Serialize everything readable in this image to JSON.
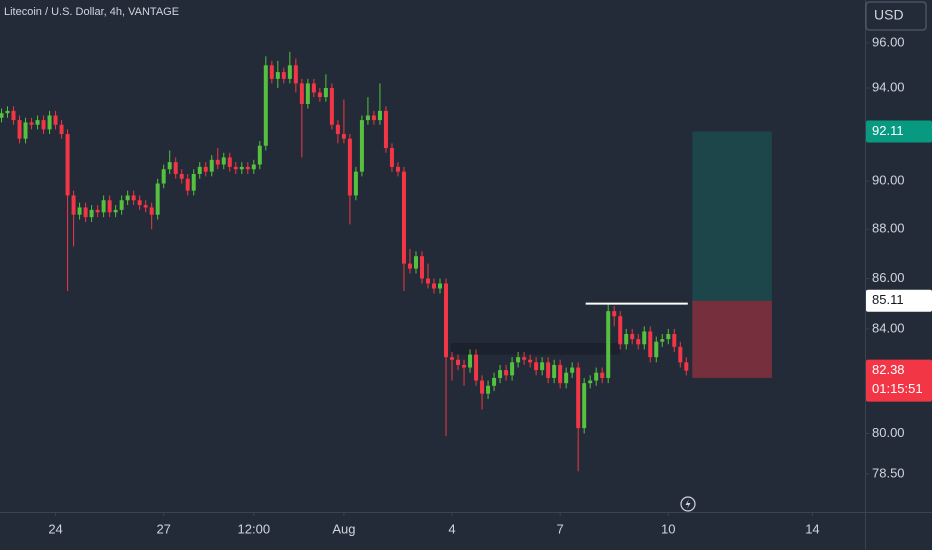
{
  "chart_data": {
    "type": "candlestick",
    "title": "Litecoin / U.S. Dollar, 4h, VANTAGE",
    "currency": "USD",
    "countdown": "01:15:51",
    "log": true,
    "background": "#232b38",
    "up_color": "#56c13f",
    "down_color": "#f23645",
    "ylim": [
      77.12,
      97.94
    ],
    "yticks": [
      {
        "value": 96,
        "label": "96.00"
      },
      {
        "value": 94,
        "label": "94.00"
      },
      {
        "value": 90,
        "label": "90.00"
      },
      {
        "value": 88,
        "label": "88.00"
      },
      {
        "value": 86,
        "label": "86.00"
      },
      {
        "value": 84,
        "label": "84.00"
      },
      {
        "value": 80,
        "label": "80.00"
      },
      {
        "value": 78.5,
        "label": "78.50"
      }
    ],
    "xlim": [
      -37,
      539
    ],
    "xticks": [
      {
        "value": 0,
        "label": "24"
      },
      {
        "value": 72,
        "label": "27"
      },
      {
        "value": 132,
        "label": "12:00"
      },
      {
        "value": 192,
        "label": "Aug"
      },
      {
        "value": 264,
        "label": "4"
      },
      {
        "value": 336,
        "label": "7"
      },
      {
        "value": 408,
        "label": "10"
      },
      {
        "value": 504,
        "label": "14"
      }
    ],
    "x": [
      -36,
      -32,
      -28,
      -24,
      -20,
      -16,
      -12,
      -8,
      -4,
      0,
      4,
      8,
      12,
      16,
      20,
      24,
      28,
      32,
      36,
      40,
      44,
      48,
      52,
      56,
      60,
      64,
      68,
      72,
      76,
      80,
      84,
      88,
      92,
      96,
      100,
      104,
      108,
      112,
      116,
      120,
      124,
      128,
      132,
      136,
      140,
      144,
      148,
      152,
      156,
      160,
      164,
      168,
      172,
      176,
      180,
      184,
      188,
      192,
      196,
      200,
      204,
      208,
      212,
      216,
      220,
      224,
      228,
      232,
      236,
      240,
      244,
      248,
      252,
      256,
      260,
      264,
      268,
      272,
      276,
      280,
      284,
      288,
      292,
      296,
      300,
      304,
      308,
      312,
      316,
      320,
      324,
      328,
      332,
      336,
      340,
      344,
      348,
      352,
      356,
      360,
      364,
      368,
      372,
      376,
      380,
      384,
      388,
      392,
      396,
      400,
      404,
      408,
      412,
      416,
      420
    ],
    "ohlc": [
      [
        92.7,
        93.1,
        92.5,
        92.9
      ],
      [
        92.9,
        93.2,
        92.7,
        93.0
      ],
      [
        93.0,
        93.2,
        92.4,
        92.6
      ],
      [
        92.6,
        92.8,
        91.6,
        91.8
      ],
      [
        91.8,
        92.7,
        91.6,
        92.5
      ],
      [
        92.5,
        92.7,
        92.2,
        92.4
      ],
      [
        92.4,
        92.8,
        92.2,
        92.6
      ],
      [
        92.6,
        92.8,
        92.0,
        92.2
      ],
      [
        92.2,
        93.0,
        92.0,
        92.8
      ],
      [
        92.8,
        93.0,
        92.2,
        92.4
      ],
      [
        92.4,
        92.6,
        91.8,
        92.0
      ],
      [
        92.0,
        92.2,
        85.5,
        89.4
      ],
      [
        89.4,
        89.6,
        87.3,
        88.6
      ],
      [
        88.6,
        89.1,
        88.4,
        88.9
      ],
      [
        88.9,
        89.1,
        88.3,
        88.5
      ],
      [
        88.5,
        89.0,
        88.3,
        88.8
      ],
      [
        88.8,
        89.0,
        88.5,
        88.7
      ],
      [
        88.7,
        89.4,
        88.5,
        89.2
      ],
      [
        89.2,
        89.4,
        88.5,
        88.7
      ],
      [
        88.7,
        89.0,
        88.5,
        88.8
      ],
      [
        88.8,
        89.4,
        88.6,
        89.2
      ],
      [
        89.2,
        89.6,
        89.0,
        89.4
      ],
      [
        89.4,
        89.6,
        89.0,
        89.2
      ],
      [
        89.2,
        89.4,
        88.8,
        89.0
      ],
      [
        89.0,
        89.2,
        88.7,
        88.9
      ],
      [
        88.9,
        89.1,
        88.0,
        88.6
      ],
      [
        88.6,
        90.1,
        88.4,
        89.9
      ],
      [
        89.9,
        90.7,
        89.7,
        90.5
      ],
      [
        90.5,
        91.3,
        90.3,
        90.8
      ],
      [
        90.8,
        91.0,
        90.1,
        90.3
      ],
      [
        90.3,
        90.5,
        89.9,
        90.1
      ],
      [
        90.1,
        90.3,
        89.4,
        89.6
      ],
      [
        89.6,
        90.5,
        89.4,
        90.3
      ],
      [
        90.3,
        90.8,
        90.1,
        90.6
      ],
      [
        90.6,
        90.8,
        90.2,
        90.4
      ],
      [
        90.4,
        91.1,
        90.2,
        90.9
      ],
      [
        90.9,
        91.4,
        90.5,
        90.7
      ],
      [
        90.7,
        91.2,
        90.5,
        91.0
      ],
      [
        91.0,
        91.2,
        90.4,
        90.6
      ],
      [
        90.6,
        90.8,
        90.3,
        90.5
      ],
      [
        90.5,
        90.8,
        90.3,
        90.6
      ],
      [
        90.6,
        90.8,
        90.3,
        90.5
      ],
      [
        90.5,
        90.9,
        90.3,
        90.7
      ],
      [
        90.7,
        91.7,
        90.5,
        91.5
      ],
      [
        91.5,
        95.4,
        91.3,
        95.0
      ],
      [
        95.0,
        95.2,
        94.2,
        94.4
      ],
      [
        94.4,
        95.2,
        94.0,
        94.7
      ],
      [
        94.7,
        94.9,
        94.2,
        94.4
      ],
      [
        94.4,
        95.6,
        94.2,
        95.0
      ],
      [
        95.0,
        95.3,
        93.8,
        94.2
      ],
      [
        94.2,
        94.4,
        91.0,
        93.3
      ],
      [
        93.3,
        94.4,
        93.1,
        94.2
      ],
      [
        94.2,
        94.4,
        93.6,
        93.8
      ],
      [
        93.8,
        94.0,
        93.4,
        93.6
      ],
      [
        93.6,
        94.6,
        93.4,
        94.0
      ],
      [
        94.0,
        94.2,
        92.2,
        92.4
      ],
      [
        92.4,
        92.6,
        91.6,
        92.0
      ],
      [
        92.0,
        93.5,
        91.6,
        91.8
      ],
      [
        91.8,
        92.0,
        88.2,
        89.4
      ],
      [
        89.4,
        90.6,
        89.2,
        90.4
      ],
      [
        90.4,
        92.8,
        90.2,
        92.6
      ],
      [
        92.6,
        93.6,
        92.4,
        92.8
      ],
      [
        92.8,
        93.0,
        92.4,
        92.6
      ],
      [
        92.6,
        94.2,
        92.4,
        93.0
      ],
      [
        93.0,
        93.2,
        91.2,
        91.4
      ],
      [
        91.4,
        91.6,
        90.4,
        90.6
      ],
      [
        90.6,
        90.8,
        90.2,
        90.4
      ],
      [
        90.4,
        90.6,
        85.5,
        86.6
      ],
      [
        86.6,
        87.2,
        86.2,
        86.4
      ],
      [
        86.4,
        87.1,
        86.2,
        86.9
      ],
      [
        86.9,
        87.1,
        85.8,
        86.0
      ],
      [
        86.0,
        86.6,
        85.6,
        85.8
      ],
      [
        85.8,
        86.0,
        85.4,
        85.6
      ],
      [
        85.6,
        86.0,
        85.4,
        85.8
      ],
      [
        85.8,
        86.0,
        79.9,
        82.9
      ],
      [
        82.9,
        83.1,
        82.0,
        82.8
      ],
      [
        82.8,
        83.0,
        82.4,
        82.6
      ],
      [
        82.6,
        82.8,
        81.8,
        82.5
      ],
      [
        82.5,
        83.2,
        82.3,
        83.0
      ],
      [
        83.0,
        83.2,
        81.8,
        82.0
      ],
      [
        82.0,
        82.2,
        80.9,
        81.5
      ],
      [
        81.5,
        82.0,
        81.3,
        81.8
      ],
      [
        81.8,
        82.3,
        81.6,
        82.1
      ],
      [
        82.1,
        82.6,
        81.9,
        82.4
      ],
      [
        82.4,
        82.6,
        82.0,
        82.2
      ],
      [
        82.2,
        82.9,
        82.0,
        82.7
      ],
      [
        82.7,
        83.1,
        82.5,
        82.9
      ],
      [
        82.9,
        83.1,
        82.6,
        82.8
      ],
      [
        82.8,
        83.0,
        82.5,
        82.7
      ],
      [
        82.7,
        82.9,
        82.2,
        82.4
      ],
      [
        82.4,
        82.9,
        82.2,
        82.7
      ],
      [
        82.7,
        82.9,
        81.9,
        82.1
      ],
      [
        82.1,
        82.8,
        81.9,
        82.6
      ],
      [
        82.6,
        82.8,
        81.7,
        81.9
      ],
      [
        81.9,
        82.5,
        81.7,
        82.3
      ],
      [
        82.3,
        82.7,
        82.1,
        82.5
      ],
      [
        82.5,
        82.7,
        78.6,
        80.2
      ],
      [
        80.2,
        82.1,
        80.0,
        81.9
      ],
      [
        81.9,
        82.2,
        81.7,
        82.0
      ],
      [
        82.0,
        82.5,
        81.8,
        82.3
      ],
      [
        82.3,
        82.5,
        81.9,
        82.1
      ],
      [
        82.1,
        85.0,
        81.9,
        84.7
      ],
      [
        84.7,
        84.9,
        84.1,
        84.5
      ],
      [
        84.5,
        84.7,
        83.2,
        83.4
      ],
      [
        83.4,
        84.0,
        83.2,
        83.8
      ],
      [
        83.8,
        84.0,
        83.4,
        83.6
      ],
      [
        83.6,
        83.8,
        83.2,
        83.4
      ],
      [
        83.4,
        84.1,
        83.2,
        83.9
      ],
      [
        83.9,
        84.1,
        82.7,
        82.9
      ],
      [
        82.9,
        83.7,
        82.7,
        83.5
      ],
      [
        83.5,
        83.8,
        83.3,
        83.6
      ],
      [
        83.6,
        84.0,
        83.4,
        83.8
      ],
      [
        83.8,
        84.0,
        83.1,
        83.3
      ],
      [
        83.3,
        83.5,
        82.5,
        82.7
      ],
      [
        82.7,
        82.9,
        82.2,
        82.38
      ]
    ],
    "position": {
      "entry": 85.11,
      "target": 92.11,
      "stop": 82.1,
      "x": [
        424,
        477
      ],
      "target_color": "#089981",
      "stop_color": "#f23645"
    },
    "zone": {
      "top": 83.45,
      "bottom": 83.0,
      "x": [
        263,
        376
      ],
      "color": "#1b212b"
    },
    "level": {
      "value": 85.0,
      "x": [
        353,
        421
      ],
      "color": "#ffffff"
    }
  }
}
